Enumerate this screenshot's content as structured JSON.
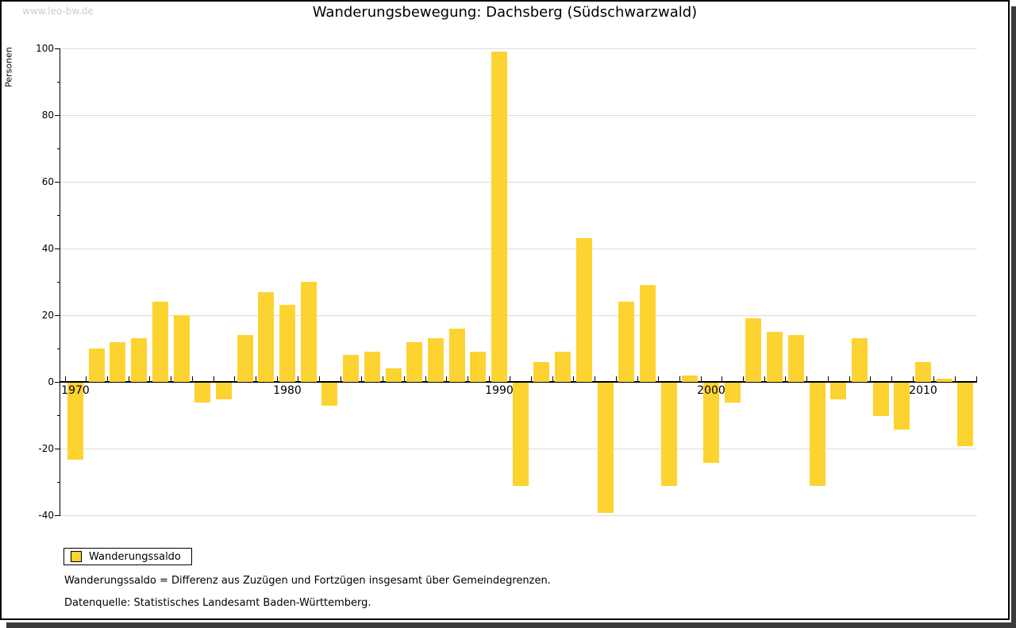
{
  "title": "Wanderungsbewegung: Dachsberg (Südschwarzwald)",
  "watermark": "www.leo-bw.de",
  "footnotes": {
    "definition": "Wanderungssaldo = Differenz aus Zuzügen und Fortzügen insgesamt über Gemeindegrenzen.",
    "source": "Datenquelle: Statistisches Landesamt Baden-Württemberg."
  },
  "colors": {
    "bar": "#fcd330",
    "gridline": "#dcdcdc",
    "axis": "#000000",
    "watermark": "#cccccc",
    "shadow": "#3a3a3a"
  },
  "chart_data": {
    "type": "bar",
    "title": "Wanderungsbewegung: Dachsberg (Südschwarzwald)",
    "xlabel": "",
    "ylabel": "Personen",
    "ylim": [
      -40,
      100
    ],
    "ytick_step": 20,
    "ytick_minor_step": 10,
    "grid": true,
    "legend_position": "bottom-left",
    "x_axis_labels": [
      1970,
      1980,
      1990,
      2000,
      2010
    ],
    "categories": [
      1970,
      1971,
      1972,
      1973,
      1974,
      1975,
      1976,
      1977,
      1978,
      1979,
      1980,
      1981,
      1982,
      1983,
      1984,
      1985,
      1986,
      1987,
      1988,
      1989,
      1990,
      1991,
      1992,
      1993,
      1994,
      1995,
      1996,
      1997,
      1998,
      1999,
      2000,
      2001,
      2002,
      2003,
      2004,
      2005,
      2006,
      2007,
      2008,
      2009,
      2010,
      2011,
      2012
    ],
    "series": [
      {
        "name": "Wanderungssaldo",
        "values": [
          -23,
          10,
          12,
          13,
          24,
          20,
          -6,
          -5,
          14,
          27,
          23,
          30,
          -7,
          8,
          9,
          4,
          12,
          13,
          16,
          9,
          99,
          -31,
          6,
          9,
          43,
          -39,
          24,
          29,
          -31,
          2,
          -24,
          -6,
          19,
          15,
          14,
          -31,
          -5,
          13,
          -10,
          -14,
          6,
          1,
          -19
        ]
      }
    ]
  }
}
